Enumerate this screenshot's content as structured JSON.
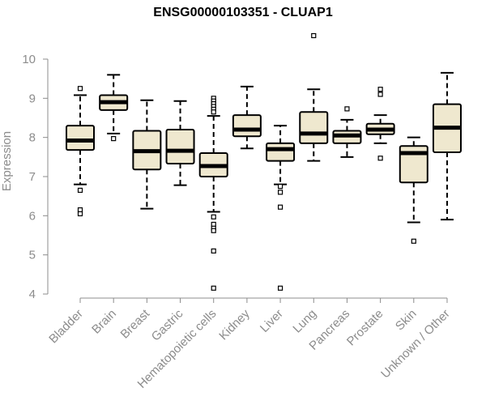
{
  "chart_data": {
    "type": "box",
    "title": "ENSG00000103351 - CLUAP1",
    "ylabel": "Expression",
    "xlabel": "",
    "ylim": [
      4,
      10.6
    ],
    "yticks": [
      4,
      5,
      6,
      7,
      8,
      9,
      10
    ],
    "grid": false,
    "box_fill": "#efe8cf",
    "categories": [
      "Bladder",
      "Brain",
      "Breast",
      "Gastric",
      "Hematopoietic cells",
      "Kidney",
      "Liver",
      "Lung",
      "Pancreas",
      "Prostate",
      "Skin",
      "Unknown / Other"
    ],
    "boxes": [
      {
        "category": "Bladder",
        "whisker_low": 6.8,
        "q1": 7.68,
        "median": 7.92,
        "q3": 8.3,
        "whisker_high": 9.08,
        "outliers": [
          9.25,
          6.65,
          6.15,
          6.05
        ]
      },
      {
        "category": "Brain",
        "whisker_low": 8.1,
        "q1": 8.7,
        "median": 8.9,
        "q3": 9.08,
        "whisker_high": 9.6,
        "outliers": [
          7.97
        ]
      },
      {
        "category": "Breast",
        "whisker_low": 6.18,
        "q1": 7.18,
        "median": 7.65,
        "q3": 8.17,
        "whisker_high": 8.95,
        "outliers": []
      },
      {
        "category": "Gastric",
        "whisker_low": 6.78,
        "q1": 7.33,
        "median": 7.66,
        "q3": 8.2,
        "whisker_high": 8.93,
        "outliers": []
      },
      {
        "category": "Hematopoietic cells",
        "whisker_low": 6.1,
        "q1": 7.0,
        "median": 7.27,
        "q3": 7.6,
        "whisker_high": 8.55,
        "outliers": [
          9.0,
          8.93,
          8.86,
          8.79,
          8.72,
          8.65,
          5.97,
          5.78,
          5.68,
          5.62,
          5.1,
          4.15
        ]
      },
      {
        "category": "Kidney",
        "whisker_low": 7.72,
        "q1": 8.03,
        "median": 8.2,
        "q3": 8.57,
        "whisker_high": 9.3,
        "outliers": []
      },
      {
        "category": "Liver",
        "whisker_low": 6.8,
        "q1": 7.4,
        "median": 7.7,
        "q3": 7.85,
        "whisker_high": 8.3,
        "outliers": [
          6.75,
          6.6,
          6.22,
          4.15
        ]
      },
      {
        "category": "Lung",
        "whisker_low": 7.4,
        "q1": 7.85,
        "median": 8.1,
        "q3": 8.65,
        "whisker_high": 9.23,
        "outliers": [
          10.6
        ]
      },
      {
        "category": "Pancreas",
        "whisker_low": 7.5,
        "q1": 7.85,
        "median": 8.05,
        "q3": 8.17,
        "whisker_high": 8.45,
        "outliers": [
          8.73
        ]
      },
      {
        "category": "Prostate",
        "whisker_low": 7.85,
        "q1": 8.08,
        "median": 8.2,
        "q3": 8.35,
        "whisker_high": 8.57,
        "outliers": [
          9.23,
          9.1,
          7.47
        ]
      },
      {
        "category": "Skin",
        "whisker_low": 5.83,
        "q1": 6.85,
        "median": 7.6,
        "q3": 7.78,
        "whisker_high": 8.0,
        "outliers": [
          5.35
        ]
      },
      {
        "category": "Unknown / Other",
        "whisker_low": 5.9,
        "q1": 7.62,
        "median": 8.25,
        "q3": 8.85,
        "whisker_high": 9.65,
        "outliers": []
      }
    ]
  }
}
